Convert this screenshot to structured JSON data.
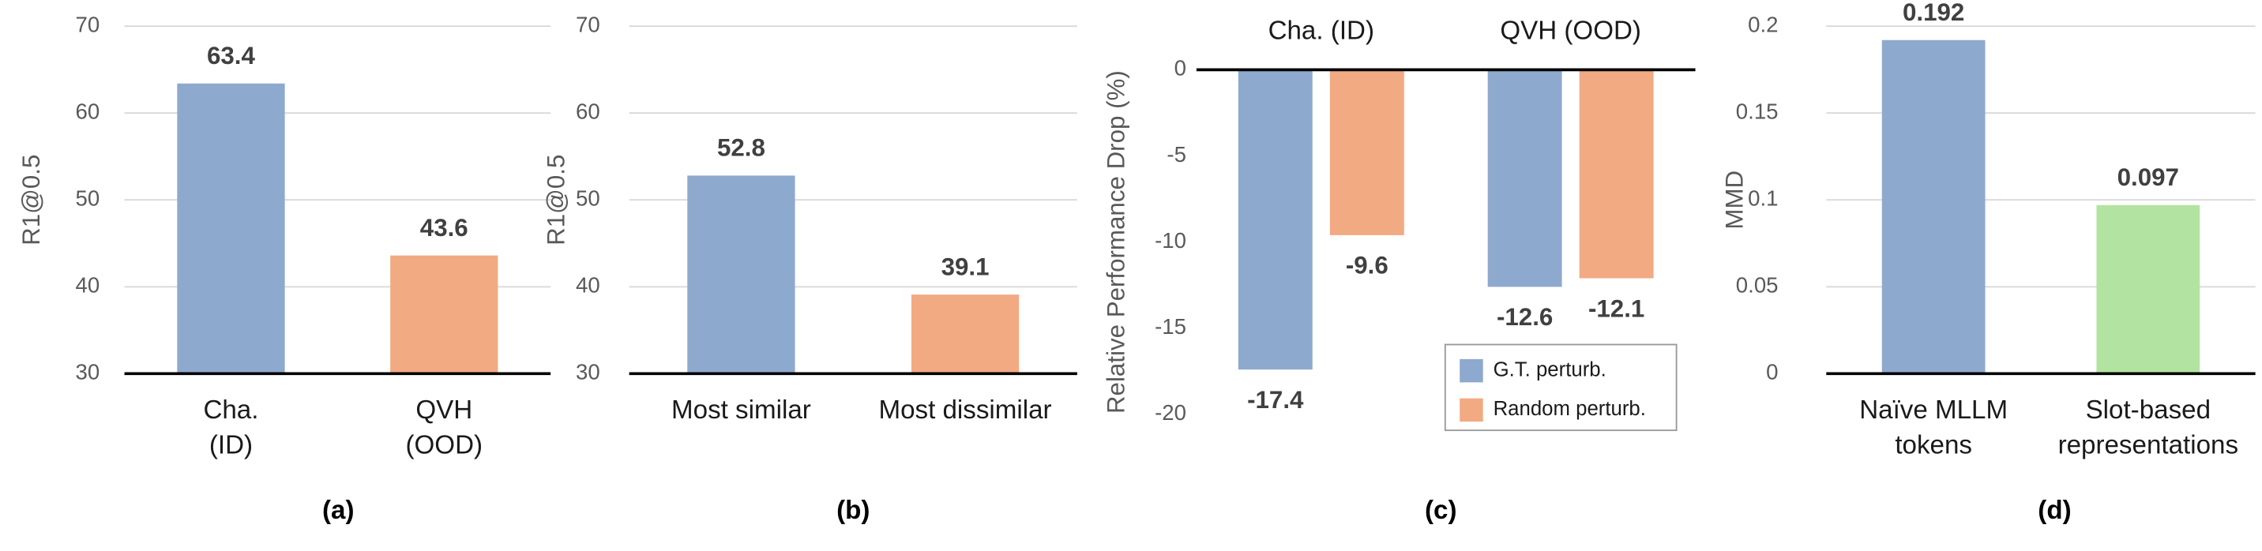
{
  "chart_data": [
    {
      "type": "bar",
      "caption": "(a)",
      "y_label": "R1@0.5",
      "categories": [
        "Cha.\n(ID)",
        "QVH\n(OOD)"
      ],
      "values": [
        63.4,
        43.6
      ],
      "colors": [
        "#8EA9CE",
        "#F2AA82"
      ],
      "value_label_color": "#000000",
      "ylim": [
        30,
        70
      ],
      "yticks": [
        30,
        40,
        50,
        60,
        70
      ],
      "grid": true
    },
    {
      "type": "bar",
      "caption": "(b)",
      "y_label": "R1@0.5",
      "categories": [
        "Most similar",
        "Most dissimilar"
      ],
      "values": [
        52.8,
        39.1
      ],
      "colors": [
        "#8EA9CE",
        "#F2AA82"
      ],
      "value_label_color": "#404040",
      "ylim": [
        30,
        70
      ],
      "yticks": [
        30,
        40,
        50,
        60,
        70
      ],
      "grid": true
    },
    {
      "type": "bar",
      "caption": "(c)",
      "y_label": "Relative Performance Drop (%)",
      "categories": [
        "Cha. (ID)",
        "QVH (OOD)"
      ],
      "series": [
        {
          "name": "G.T. perturb.",
          "color": "#8EA9CE",
          "values": [
            -17.4,
            -12.6
          ]
        },
        {
          "name": "Random perturb.",
          "color": "#F2AA82",
          "values": [
            -9.6,
            -12.1
          ]
        }
      ],
      "value_label_color": "#000000",
      "ylim": [
        -20,
        0
      ],
      "yticks": [
        0,
        -5,
        -10,
        -15,
        -20
      ],
      "grid": false,
      "legend": "lower right"
    },
    {
      "type": "bar",
      "caption": "(d)",
      "y_label": "MMD",
      "categories": [
        "Naïve MLLM\ntokens",
        "Slot-based\nrepresentations"
      ],
      "values": [
        0.192,
        0.097
      ],
      "colors": [
        "#8EA9CE",
        "#B3E3A0"
      ],
      "value_label_color": "#000000",
      "ylim": [
        0,
        0.2
      ],
      "yticks": [
        0,
        0.05,
        0.1,
        0.15,
        0.2
      ],
      "grid": true
    }
  ]
}
